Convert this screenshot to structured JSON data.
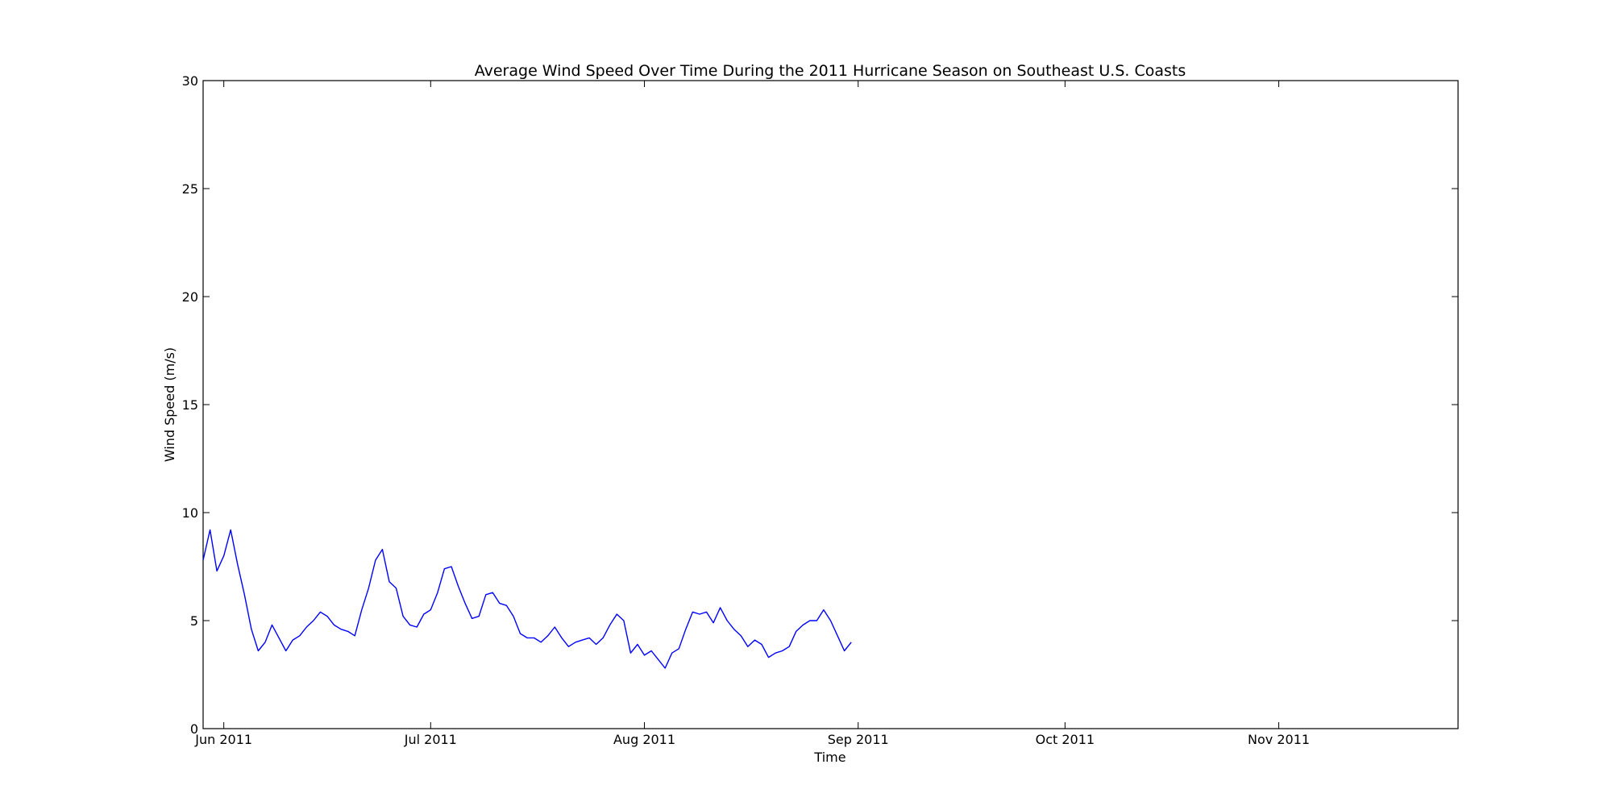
{
  "chart_data": {
    "type": "line",
    "title": "Average Wind Speed Over Time During the 2011 Hurricane Season on Southeast U.S. Coasts",
    "xlabel": "Time",
    "ylabel": "Wind Speed (m/s)",
    "x_range": [
      "2011-05-29",
      "2011-11-27"
    ],
    "ylim": [
      0,
      30
    ],
    "grid": false,
    "legend": "none",
    "line_color": "#0000ff",
    "x_ticks": [
      {
        "date": "2011-06-01",
        "label": "Jun 2011"
      },
      {
        "date": "2011-07-01",
        "label": "Jul 2011"
      },
      {
        "date": "2011-08-01",
        "label": "Aug 2011"
      },
      {
        "date": "2011-09-01",
        "label": "Sep 2011"
      },
      {
        "date": "2011-10-01",
        "label": "Oct 2011"
      },
      {
        "date": "2011-11-01",
        "label": "Nov 2011"
      }
    ],
    "y_ticks": [
      {
        "value": 0,
        "label": "0"
      },
      {
        "value": 5,
        "label": "5"
      },
      {
        "value": 10,
        "label": "10"
      },
      {
        "value": 15,
        "label": "15"
      },
      {
        "value": 20,
        "label": "20"
      },
      {
        "value": 25,
        "label": "25"
      },
      {
        "value": 30,
        "label": "30"
      }
    ],
    "series": [
      {
        "points": [
          [
            "2011-05-29",
            7.8
          ],
          [
            "2011-05-30",
            9.2
          ],
          [
            "2011-05-31",
            7.3
          ],
          [
            "2011-06-01",
            8.0
          ],
          [
            "2011-06-02",
            9.2
          ],
          [
            "2011-06-03",
            7.6
          ],
          [
            "2011-06-04",
            6.2
          ],
          [
            "2011-06-05",
            4.6
          ],
          [
            "2011-06-06",
            3.6
          ],
          [
            "2011-06-07",
            4.0
          ],
          [
            "2011-06-08",
            4.8
          ],
          [
            "2011-06-09",
            4.2
          ],
          [
            "2011-06-10",
            3.6
          ],
          [
            "2011-06-11",
            4.1
          ],
          [
            "2011-06-12",
            4.3
          ],
          [
            "2011-06-13",
            4.7
          ],
          [
            "2011-06-14",
            5.0
          ],
          [
            "2011-06-15",
            5.4
          ],
          [
            "2011-06-16",
            5.2
          ],
          [
            "2011-06-17",
            4.8
          ],
          [
            "2011-06-18",
            4.6
          ],
          [
            "2011-06-19",
            4.5
          ],
          [
            "2011-06-20",
            4.3
          ],
          [
            "2011-06-21",
            5.5
          ],
          [
            "2011-06-22",
            6.5
          ],
          [
            "2011-06-23",
            7.8
          ],
          [
            "2011-06-24",
            8.3
          ],
          [
            "2011-06-25",
            6.8
          ],
          [
            "2011-06-26",
            6.5
          ],
          [
            "2011-06-27",
            5.2
          ],
          [
            "2011-06-28",
            4.8
          ],
          [
            "2011-06-29",
            4.7
          ],
          [
            "2011-06-30",
            5.3
          ],
          [
            "2011-07-01",
            5.5
          ],
          [
            "2011-07-02",
            6.3
          ],
          [
            "2011-07-03",
            7.4
          ],
          [
            "2011-07-04",
            7.5
          ],
          [
            "2011-07-05",
            6.6
          ],
          [
            "2011-07-06",
            5.8
          ],
          [
            "2011-07-07",
            5.1
          ],
          [
            "2011-07-08",
            5.2
          ],
          [
            "2011-07-09",
            6.2
          ],
          [
            "2011-07-10",
            6.3
          ],
          [
            "2011-07-11",
            5.8
          ],
          [
            "2011-07-12",
            5.7
          ],
          [
            "2011-07-13",
            5.2
          ],
          [
            "2011-07-14",
            4.4
          ],
          [
            "2011-07-15",
            4.2
          ],
          [
            "2011-07-16",
            4.2
          ],
          [
            "2011-07-17",
            4.0
          ],
          [
            "2011-07-18",
            4.3
          ],
          [
            "2011-07-19",
            4.7
          ],
          [
            "2011-07-20",
            4.2
          ],
          [
            "2011-07-21",
            3.8
          ],
          [
            "2011-07-22",
            4.0
          ],
          [
            "2011-07-23",
            4.1
          ],
          [
            "2011-07-24",
            4.2
          ],
          [
            "2011-07-25",
            3.9
          ],
          [
            "2011-07-26",
            4.2
          ],
          [
            "2011-07-27",
            4.8
          ],
          [
            "2011-07-28",
            5.3
          ],
          [
            "2011-07-29",
            5.0
          ],
          [
            "2011-07-30",
            3.5
          ],
          [
            "2011-07-31",
            3.9
          ],
          [
            "2011-08-01",
            3.4
          ],
          [
            "2011-08-02",
            3.6
          ],
          [
            "2011-08-03",
            3.2
          ],
          [
            "2011-08-04",
            2.8
          ],
          [
            "2011-08-05",
            3.5
          ],
          [
            "2011-08-06",
            3.7
          ],
          [
            "2011-08-07",
            4.6
          ],
          [
            "2011-08-08",
            5.4
          ],
          [
            "2011-08-09",
            5.3
          ],
          [
            "2011-08-10",
            5.4
          ],
          [
            "2011-08-11",
            4.9
          ],
          [
            "2011-08-12",
            5.6
          ],
          [
            "2011-08-13",
            5.0
          ],
          [
            "2011-08-14",
            4.6
          ],
          [
            "2011-08-15",
            4.3
          ],
          [
            "2011-08-16",
            3.8
          ],
          [
            "2011-08-17",
            4.1
          ],
          [
            "2011-08-18",
            3.9
          ],
          [
            "2011-08-19",
            3.3
          ],
          [
            "2011-08-20",
            3.5
          ],
          [
            "2011-08-21",
            3.6
          ],
          [
            "2011-08-22",
            3.8
          ],
          [
            "2011-08-23",
            4.5
          ],
          [
            "2011-08-24",
            4.8
          ],
          [
            "2011-08-25",
            5.0
          ],
          [
            "2011-08-26",
            5.0
          ],
          [
            "2011-08-27",
            5.5
          ],
          [
            "2011-08-28",
            5.0
          ],
          [
            "2011-08-29",
            4.3
          ],
          [
            "2011-08-30",
            3.6
          ],
          [
            "2011-08-31",
            4.0
          ]
        ]
      }
    ]
  }
}
